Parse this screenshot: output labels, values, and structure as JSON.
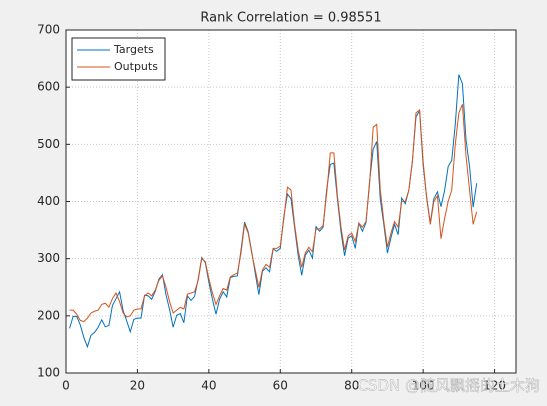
{
  "chart_data": {
    "type": "line",
    "title": "Rank Correlation = 0.98551",
    "x_start": 1,
    "series": [
      {
        "name": "Targets",
        "color": "#0072BD",
        "values": [
          178,
          199,
          199,
          184,
          162,
          146,
          166,
          171,
          180,
          193,
          181,
          183,
          218,
          230,
          242,
          209,
          191,
          172,
          194,
          196,
          196,
          236,
          235,
          229,
          243,
          264,
          272,
          237,
          211,
          180,
          201,
          204,
          188,
          235,
          227,
          234,
          264,
          302,
          293,
          259,
          229,
          203,
          229,
          242,
          233,
          267,
          269,
          270,
          315,
          364,
          347,
          312,
          274,
          237,
          278,
          284,
          277,
          317,
          313,
          318,
          374,
          413,
          405,
          355,
          306,
          271,
          306,
          315,
          301,
          356,
          348,
          355,
          422,
          465,
          467,
          404,
          347,
          305,
          336,
          340,
          318,
          362,
          348,
          363,
          435,
          491,
          505,
          404,
          359,
          310,
          337,
          360,
          342,
          406,
          396,
          420,
          472,
          548,
          559,
          463,
          407,
          362,
          405,
          417,
          391,
          419,
          461,
          472,
          535,
          622,
          606,
          508,
          461,
          390,
          432
        ]
      },
      {
        "name": "Outputs",
        "color": "#D95319",
        "values": [
          210,
          210,
          203,
          192,
          190,
          196,
          205,
          208,
          210,
          220,
          222,
          215,
          230,
          240,
          225,
          205,
          198,
          200,
          210,
          212,
          212,
          235,
          240,
          235,
          245,
          262,
          270,
          250,
          225,
          205,
          210,
          215,
          212,
          238,
          240,
          242,
          262,
          300,
          295,
          265,
          240,
          220,
          235,
          248,
          245,
          268,
          272,
          275,
          310,
          360,
          345,
          310,
          280,
          250,
          280,
          290,
          285,
          318,
          318,
          322,
          370,
          425,
          420,
          360,
          315,
          285,
          310,
          320,
          312,
          352,
          352,
          358,
          415,
          485,
          485,
          410,
          355,
          315,
          340,
          345,
          330,
          362,
          355,
          365,
          430,
          530,
          535,
          420,
          365,
          320,
          345,
          365,
          355,
          400,
          400,
          420,
          470,
          555,
          560,
          470,
          405,
          360,
          400,
          410,
          335,
          370,
          400,
          420,
          500,
          555,
          570,
          480,
          420,
          360,
          382
        ]
      }
    ],
    "xlim": [
      0,
      126
    ],
    "xticks": [
      0,
      20,
      40,
      60,
      80,
      100,
      120
    ],
    "ylim": [
      100,
      700
    ],
    "yticks": [
      100,
      200,
      300,
      400,
      500,
      600,
      700
    ],
    "grid": true,
    "legend": "upper left",
    "watermark": "CSDN @随风飘摇的土木狗"
  }
}
